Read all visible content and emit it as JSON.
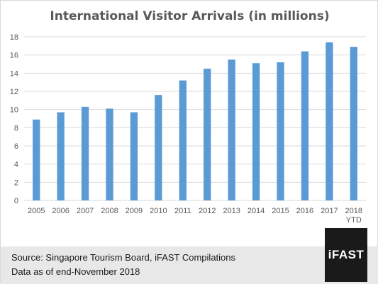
{
  "chart_data": {
    "type": "bar",
    "title": "International Visitor Arrivals (in millions)",
    "categories": [
      "2005",
      "2006",
      "2007",
      "2008",
      "2009",
      "2010",
      "2011",
      "2012",
      "2013",
      "2014",
      "2015",
      "2016",
      "2017",
      "2018\nYTD"
    ],
    "values": [
      8.9,
      9.7,
      10.3,
      10.1,
      9.7,
      11.6,
      13.2,
      14.5,
      15.5,
      15.1,
      15.2,
      16.4,
      17.4,
      16.9
    ],
    "xlabel": "",
    "ylabel": "",
    "ylim": [
      0,
      18
    ],
    "yticks": [
      0,
      2,
      4,
      6,
      8,
      10,
      12,
      14,
      16,
      18
    ],
    "grid": true,
    "legend": "none",
    "bar_color": "#5b9bd5",
    "grid_color": "#d9d9d9"
  },
  "footer": {
    "source": "Source: Singapore Tourism Board, iFAST Compilations",
    "date": "Data as of end-November 2018"
  },
  "logo": {
    "text": "iFAST"
  }
}
